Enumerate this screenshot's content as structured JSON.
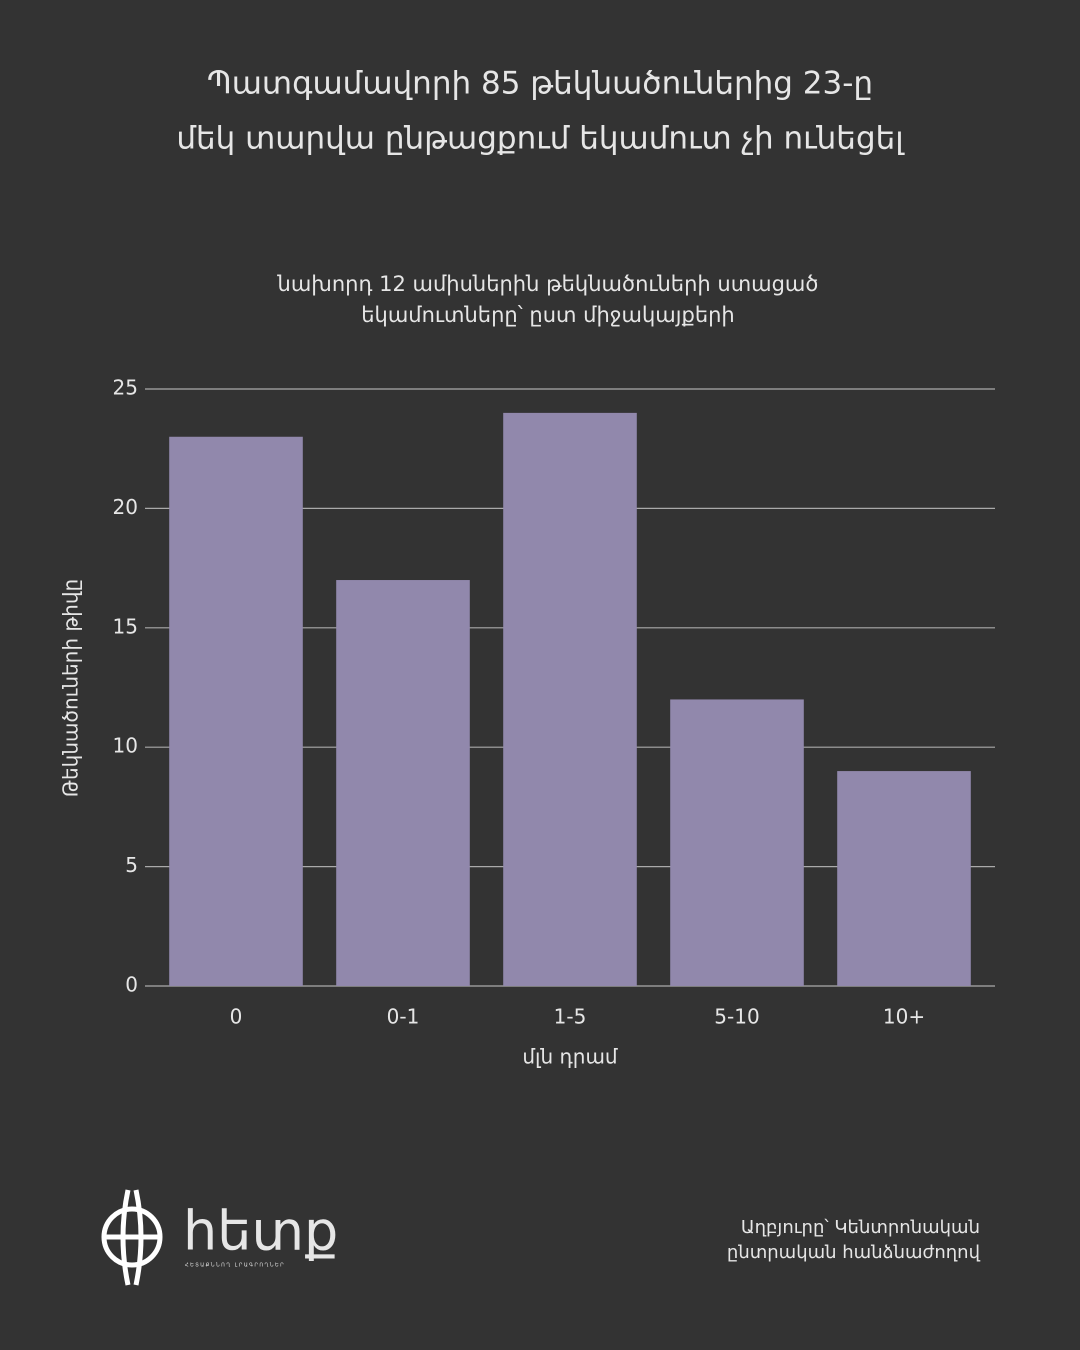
{
  "chart_data": {
    "type": "bar",
    "title": [
      "Պատգամավորի 85 թեկնածուներից 23-ը",
      "մեկ տարվա ընթացքում եկամուտ չի ունեցել"
    ],
    "subtitle": [
      "նախորդ 12 ամիսներին թեկնածուների ստացած",
      "եկամուտները՝ ըստ միջակայքերի"
    ],
    "x_label": "մլն դրամ",
    "y_label": "Թեկնածուների թիվը",
    "categories": [
      "0",
      "0-1",
      "1-5",
      "5-10",
      "10+"
    ],
    "values": [
      23,
      17,
      24,
      12,
      9
    ],
    "color": "#9188ac",
    "ylim": [
      0,
      25
    ],
    "yticks": [
      0,
      5,
      10,
      15,
      20,
      25
    ],
    "grid": true,
    "source": [
      "Աղբյուրը՝ Կենտրոնական",
      "ընտրական հանձնաժողով"
    ],
    "logo": {
      "name": "հետք",
      "tagline": "ՀԵՏԱՔՆՆՈՂ ԼՐԱԳՐՈՂՆԵՐ"
    }
  }
}
